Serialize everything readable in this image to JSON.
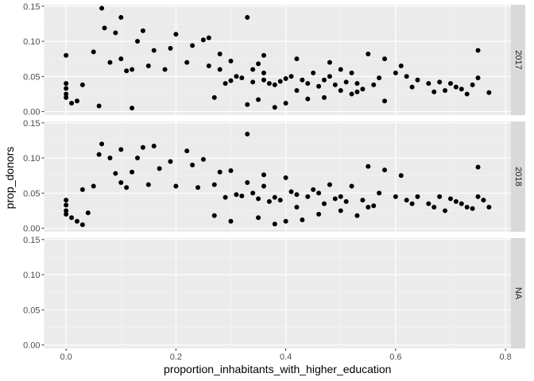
{
  "chart_data": {
    "type": "scatter",
    "facet": "year",
    "xlabel": "proportion_inhabitants_with_higher_education",
    "ylabel": "prop_donors",
    "xlim": [
      -0.04,
      0.81
    ],
    "ylim": [
      -0.005,
      0.152
    ],
    "x_ticks": [
      {
        "value": 0.0,
        "label": "0.0"
      },
      {
        "value": 0.2,
        "label": "0.2"
      },
      {
        "value": 0.4,
        "label": "0.4"
      },
      {
        "value": 0.6,
        "label": "0.6"
      },
      {
        "value": 0.8,
        "label": "0.8"
      }
    ],
    "y_ticks": [
      {
        "value": 0.0,
        "label": "0.00"
      },
      {
        "value": 0.05,
        "label": "0.05"
      },
      {
        "value": 0.1,
        "label": "0.10"
      },
      {
        "value": 0.15,
        "label": "0.15"
      }
    ],
    "panels": [
      {
        "strip": "2017",
        "points": [
          [
            0.065,
            0.147
          ],
          [
            0.1,
            0.134
          ],
          [
            0.33,
            0.134
          ],
          [
            0.07,
            0.119
          ],
          [
            0.14,
            0.115
          ],
          [
            0.2,
            0.11
          ],
          [
            0.09,
            0.112
          ],
          [
            0.26,
            0.105
          ],
          [
            0.25,
            0.102
          ],
          [
            0.0,
            0.08
          ],
          [
            0.13,
            0.1
          ],
          [
            0.75,
            0.087
          ],
          [
            0.05,
            0.085
          ],
          [
            0.23,
            0.094
          ],
          [
            0.19,
            0.09
          ],
          [
            0.16,
            0.087
          ],
          [
            0.28,
            0.082
          ],
          [
            0.36,
            0.08
          ],
          [
            0.55,
            0.082
          ],
          [
            0.58,
            0.075
          ],
          [
            0.61,
            0.065
          ],
          [
            0.42,
            0.075
          ],
          [
            0.35,
            0.068
          ],
          [
            0.1,
            0.075
          ],
          [
            0.08,
            0.07
          ],
          [
            0.22,
            0.07
          ],
          [
            0.3,
            0.072
          ],
          [
            0.48,
            0.07
          ],
          [
            0.0,
            0.04
          ],
          [
            0.0,
            0.033
          ],
          [
            0.0,
            0.025
          ],
          [
            0.0,
            0.02
          ],
          [
            0.01,
            0.012
          ],
          [
            0.02,
            0.015
          ],
          [
            0.03,
            0.038
          ],
          [
            0.5,
            0.06
          ],
          [
            0.52,
            0.055
          ],
          [
            0.47,
            0.045
          ],
          [
            0.53,
            0.04
          ],
          [
            0.45,
            0.055
          ],
          [
            0.57,
            0.048
          ],
          [
            0.6,
            0.055
          ],
          [
            0.62,
            0.05
          ],
          [
            0.64,
            0.045
          ],
          [
            0.66,
            0.04
          ],
          [
            0.68,
            0.042
          ],
          [
            0.7,
            0.04
          ],
          [
            0.71,
            0.035
          ],
          [
            0.72,
            0.032
          ],
          [
            0.69,
            0.03
          ],
          [
            0.67,
            0.028
          ],
          [
            0.74,
            0.038
          ],
          [
            0.75,
            0.048
          ],
          [
            0.73,
            0.025
          ],
          [
            0.77,
            0.027
          ],
          [
            0.63,
            0.035
          ],
          [
            0.56,
            0.038
          ],
          [
            0.54,
            0.032
          ],
          [
            0.51,
            0.042
          ],
          [
            0.49,
            0.038
          ],
          [
            0.46,
            0.036
          ],
          [
            0.44,
            0.04
          ],
          [
            0.43,
            0.045
          ],
          [
            0.41,
            0.05
          ],
          [
            0.4,
            0.047
          ],
          [
            0.39,
            0.043
          ],
          [
            0.38,
            0.038
          ],
          [
            0.37,
            0.04
          ],
          [
            0.36,
            0.045
          ],
          [
            0.34,
            0.042
          ],
          [
            0.32,
            0.048
          ],
          [
            0.31,
            0.05
          ],
          [
            0.3,
            0.044
          ],
          [
            0.29,
            0.04
          ],
          [
            0.52,
            0.025
          ],
          [
            0.47,
            0.02
          ],
          [
            0.58,
            0.015
          ],
          [
            0.44,
            0.018
          ],
          [
            0.33,
            0.01
          ],
          [
            0.38,
            0.006
          ],
          [
            0.4,
            0.012
          ],
          [
            0.35,
            0.017
          ],
          [
            0.27,
            0.02
          ],
          [
            0.06,
            0.008
          ],
          [
            0.12,
            0.005
          ],
          [
            0.5,
            0.03
          ],
          [
            0.42,
            0.03
          ],
          [
            0.53,
            0.028
          ],
          [
            0.48,
            0.05
          ],
          [
            0.36,
            0.055
          ],
          [
            0.34,
            0.06
          ],
          [
            0.28,
            0.06
          ],
          [
            0.26,
            0.065
          ],
          [
            0.18,
            0.06
          ],
          [
            0.15,
            0.065
          ],
          [
            0.12,
            0.06
          ],
          [
            0.11,
            0.058
          ]
        ]
      },
      {
        "strip": "2018",
        "points": [
          [
            0.33,
            0.134
          ],
          [
            0.065,
            0.12
          ],
          [
            0.1,
            0.112
          ],
          [
            0.14,
            0.115
          ],
          [
            0.16,
            0.117
          ],
          [
            0.22,
            0.11
          ],
          [
            0.13,
            0.1
          ],
          [
            0.06,
            0.105
          ],
          [
            0.08,
            0.1
          ],
          [
            0.25,
            0.098
          ],
          [
            0.19,
            0.095
          ],
          [
            0.75,
            0.087
          ],
          [
            0.55,
            0.088
          ],
          [
            0.58,
            0.083
          ],
          [
            0.61,
            0.075
          ],
          [
            0.3,
            0.082
          ],
          [
            0.28,
            0.08
          ],
          [
            0.36,
            0.076
          ],
          [
            0.4,
            0.072
          ],
          [
            0.23,
            0.09
          ],
          [
            0.17,
            0.085
          ],
          [
            0.12,
            0.08
          ],
          [
            0.09,
            0.078
          ],
          [
            0.05,
            0.06
          ],
          [
            0.03,
            0.055
          ],
          [
            0.0,
            0.04
          ],
          [
            0.0,
            0.033
          ],
          [
            0.0,
            0.025
          ],
          [
            0.0,
            0.02
          ],
          [
            0.01,
            0.015
          ],
          [
            0.02,
            0.01
          ],
          [
            0.03,
            0.005
          ],
          [
            0.04,
            0.022
          ],
          [
            0.52,
            0.06
          ],
          [
            0.48,
            0.062
          ],
          [
            0.45,
            0.055
          ],
          [
            0.5,
            0.045
          ],
          [
            0.57,
            0.05
          ],
          [
            0.6,
            0.045
          ],
          [
            0.62,
            0.04
          ],
          [
            0.64,
            0.045
          ],
          [
            0.66,
            0.035
          ],
          [
            0.68,
            0.045
          ],
          [
            0.7,
            0.042
          ],
          [
            0.71,
            0.038
          ],
          [
            0.72,
            0.035
          ],
          [
            0.73,
            0.03
          ],
          [
            0.74,
            0.028
          ],
          [
            0.75,
            0.045
          ],
          [
            0.76,
            0.04
          ],
          [
            0.77,
            0.03
          ],
          [
            0.69,
            0.025
          ],
          [
            0.67,
            0.03
          ],
          [
            0.63,
            0.035
          ],
          [
            0.56,
            0.032
          ],
          [
            0.54,
            0.04
          ],
          [
            0.51,
            0.038
          ],
          [
            0.49,
            0.042
          ],
          [
            0.46,
            0.05
          ],
          [
            0.44,
            0.045
          ],
          [
            0.42,
            0.048
          ],
          [
            0.41,
            0.052
          ],
          [
            0.39,
            0.04
          ],
          [
            0.38,
            0.044
          ],
          [
            0.37,
            0.038
          ],
          [
            0.35,
            0.042
          ],
          [
            0.34,
            0.05
          ],
          [
            0.32,
            0.046
          ],
          [
            0.31,
            0.048
          ],
          [
            0.29,
            0.044
          ],
          [
            0.5,
            0.025
          ],
          [
            0.46,
            0.02
          ],
          [
            0.53,
            0.018
          ],
          [
            0.43,
            0.012
          ],
          [
            0.38,
            0.006
          ],
          [
            0.4,
            0.01
          ],
          [
            0.35,
            0.015
          ],
          [
            0.3,
            0.01
          ],
          [
            0.27,
            0.018
          ],
          [
            0.55,
            0.03
          ],
          [
            0.47,
            0.035
          ],
          [
            0.42,
            0.03
          ],
          [
            0.36,
            0.06
          ],
          [
            0.33,
            0.065
          ],
          [
            0.27,
            0.062
          ],
          [
            0.24,
            0.058
          ],
          [
            0.2,
            0.06
          ],
          [
            0.15,
            0.062
          ],
          [
            0.11,
            0.058
          ],
          [
            0.1,
            0.065
          ]
        ]
      },
      {
        "strip": "NA",
        "points": []
      }
    ]
  }
}
